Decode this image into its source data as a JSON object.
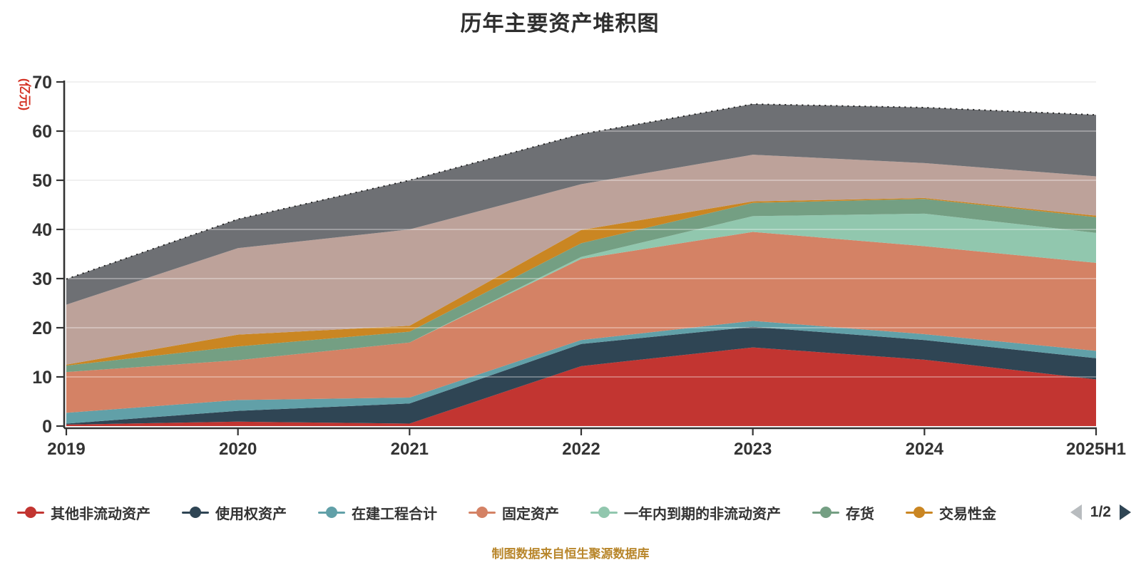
{
  "title": "历年主要资产堆积图",
  "footer": "制图数据来自恒生聚源数据库",
  "y_axis": {
    "name": "(亿元)",
    "name_color": "#d43325",
    "ticks": [
      0,
      10,
      20,
      30,
      40,
      50,
      60,
      70
    ],
    "max": 70
  },
  "x_axis": {
    "categories": [
      "2019",
      "2020",
      "2021",
      "2022",
      "2023",
      "2024",
      "2025H1"
    ]
  },
  "colors": {
    "axis_text": "#333333",
    "grid_under": "#e2e2e2",
    "grid_over": "rgba(255,255,255,0.42)",
    "axis_line": "#333333",
    "title": "#2e2e2e",
    "footer": "#b8862b"
  },
  "chart_data": {
    "type": "area",
    "stacked": true,
    "grid": true,
    "ylim": [
      0,
      70
    ],
    "x": [
      "2019",
      "2020",
      "2021",
      "2022",
      "2023",
      "2024",
      "2025H1"
    ],
    "series": [
      {
        "name": "其他非流动资产",
        "color": "#c23531",
        "legend_page": 1,
        "values": [
          0.3,
          0.9,
          0.5,
          12.2,
          16.0,
          13.5,
          9.5
        ]
      },
      {
        "name": "使用权资产",
        "color": "#2f4554",
        "legend_page": 1,
        "values": [
          0.2,
          2.2,
          4.1,
          4.5,
          4.2,
          4.0,
          4.3
        ]
      },
      {
        "name": "在建工程合计",
        "color": "#61a0a8",
        "legend_page": 1,
        "values": [
          2.2,
          2.2,
          1.2,
          0.8,
          1.2,
          1.2,
          1.5
        ]
      },
      {
        "name": "固定资产",
        "color": "#d48265",
        "legend_page": 1,
        "values": [
          8.3,
          8.1,
          11.2,
          16.5,
          18.1,
          17.9,
          17.9
        ]
      },
      {
        "name": "一年内到期的非流动资产",
        "color": "#91c7ae",
        "legend_page": 1,
        "values": [
          0,
          0,
          0,
          0.4,
          3.2,
          6.6,
          6.1
        ]
      },
      {
        "name": "存货",
        "color": "#749f83",
        "legend_page": 1,
        "values": [
          1.3,
          2.8,
          2.2,
          2.8,
          2.7,
          3.0,
          3.2
        ]
      },
      {
        "name": "交易性金",
        "color": "#ca8622",
        "legend_page": 1,
        "values": [
          0.2,
          2.4,
          1.2,
          2.7,
          0.3,
          0.2,
          0.3
        ]
      },
      {
        "name": "",
        "color": "#bda29a",
        "legend_page": 2,
        "values": [
          12.2,
          17.6,
          19.6,
          9.3,
          9.5,
          7.1,
          8.0
        ]
      },
      {
        "name": "",
        "color": "#6e7074",
        "legend_page": 2,
        "values": [
          5.2,
          5.9,
          10.0,
          10.2,
          10.3,
          11.3,
          12.5
        ]
      }
    ]
  },
  "legend": {
    "items": [
      {
        "label": "其他非流动资产",
        "color": "#c23531"
      },
      {
        "label": "使用权资产",
        "color": "#2f4554"
      },
      {
        "label": "在建工程合计",
        "color": "#61a0a8"
      },
      {
        "label": "固定资产",
        "color": "#d48265"
      },
      {
        "label": "一年内到期的非流动资产",
        "color": "#91c7ae"
      },
      {
        "label": "存货",
        "color": "#749f83"
      },
      {
        "label": "交易性金",
        "color": "#ca8622"
      }
    ],
    "pagination": {
      "page_label": "1/2",
      "prev_enabled": false,
      "next_enabled": true,
      "prev_color": "#b8bcbf",
      "next_color": "#2f4554"
    }
  }
}
